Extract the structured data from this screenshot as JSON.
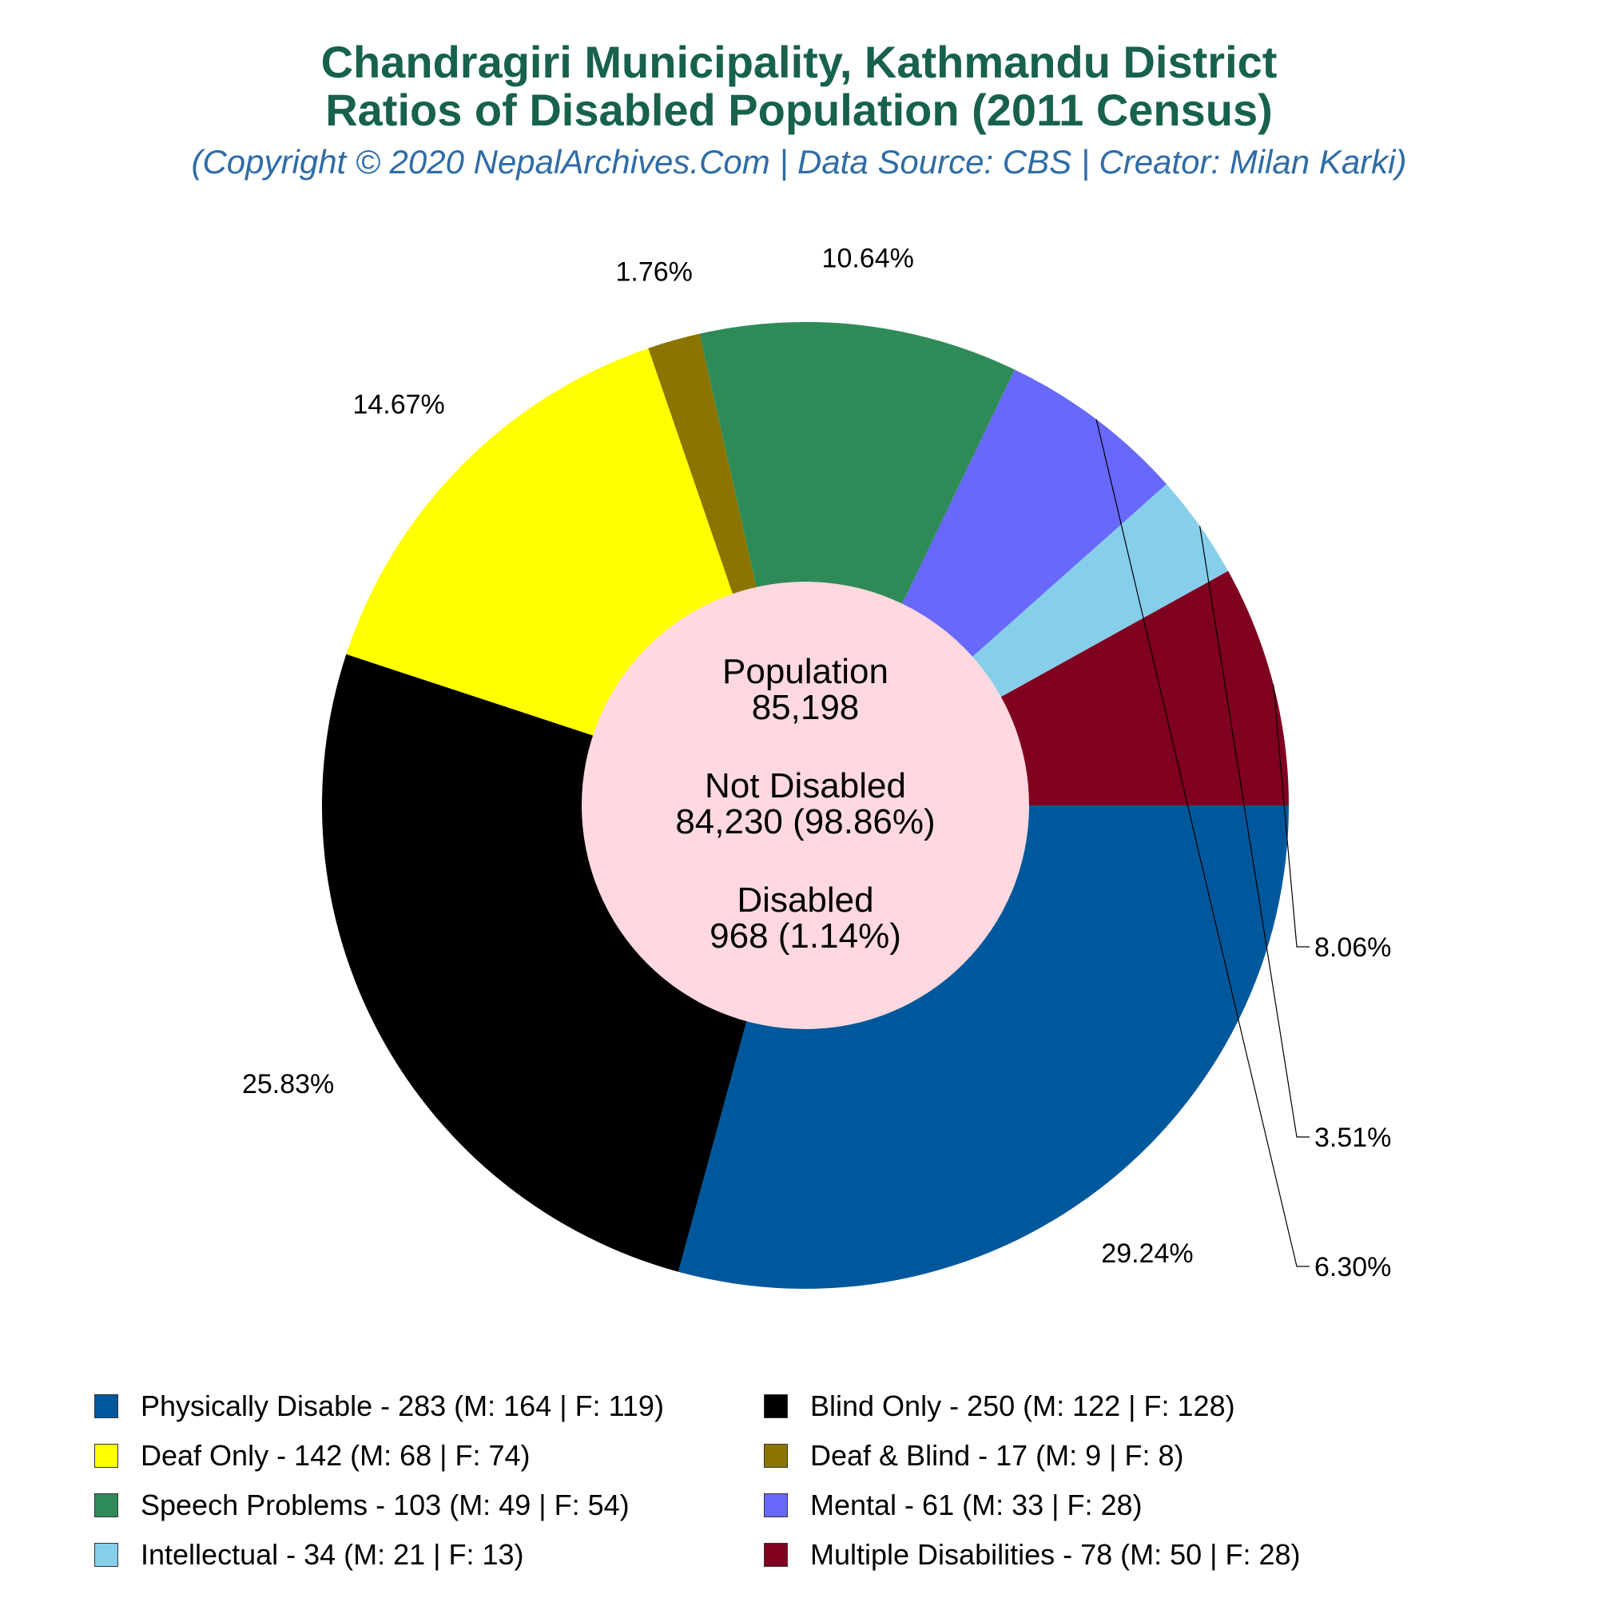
{
  "title_line1": "Chandragiri Municipality, Kathmandu District",
  "title_line2": "Ratios of Disabled Population (2011 Census)",
  "subtitle": "(Copyright © 2020 NepalArchives.Com | Data Source: CBS | Creator: Milan Karki)",
  "center": {
    "population_label": "Population",
    "population_value": "85,198",
    "not_disabled_label": "Not Disabled",
    "not_disabled_value": "84,230 (98.86%)",
    "disabled_label": "Disabled",
    "disabled_value": "968 (1.14%)"
  },
  "chart_data": {
    "type": "pie",
    "title": "Chandragiri Municipality, Kathmandu District Ratios of Disabled Population (2011 Census)",
    "start_angle_deg": 0,
    "direction": "clockwise-from-3-oclock",
    "slices": [
      {
        "name": "Physically Disable",
        "value": 283,
        "male": 164,
        "female": 119,
        "percent_label": "29.24%",
        "legend": "Physically Disable - 283 (M: 164 | F: 119)",
        "color": "#00589c"
      },
      {
        "name": "Blind Only",
        "value": 250,
        "male": 122,
        "female": 128,
        "percent_label": "25.83%",
        "legend": "Blind Only - 250 (M: 122 | F: 128)",
        "color": "#000000"
      },
      {
        "name": "Deaf Only",
        "value": 142,
        "male": 68,
        "female": 74,
        "percent_label": "14.67%",
        "legend": "Deaf Only - 142 (M: 68 | F: 74)",
        "color": "#ffff00"
      },
      {
        "name": "Deaf & Blind",
        "value": 17,
        "male": 9,
        "female": 8,
        "percent_label": "1.76%",
        "legend": "Deaf & Blind - 17 (M: 9 | F: 8)",
        "color": "#8b7500"
      },
      {
        "name": "Speech Problems",
        "value": 103,
        "male": 49,
        "female": 54,
        "percent_label": "10.64%",
        "legend": "Speech Problems - 103 (M: 49 | F: 54)",
        "color": "#2e8b57"
      },
      {
        "name": "Mental",
        "value": 61,
        "male": 33,
        "female": 28,
        "percent_label": "6.30%",
        "legend": "Mental - 61 (M: 33 | F: 28)",
        "color": "#6868fa"
      },
      {
        "name": "Intellectual",
        "value": 34,
        "male": 21,
        "female": 13,
        "percent_label": "3.51%",
        "legend": "Intellectual - 34 (M: 21 | F: 13)",
        "color": "#87ceeb"
      },
      {
        "name": "Multiple Disabilities",
        "value": 78,
        "male": 50,
        "female": 28,
        "percent_label": "8.06%",
        "legend": "Multiple Disabilities - 78 (M: 50 | F: 28)",
        "color": "#800020"
      }
    ],
    "center_hole_color": "#ffd9df",
    "legend_position": "bottom"
  }
}
